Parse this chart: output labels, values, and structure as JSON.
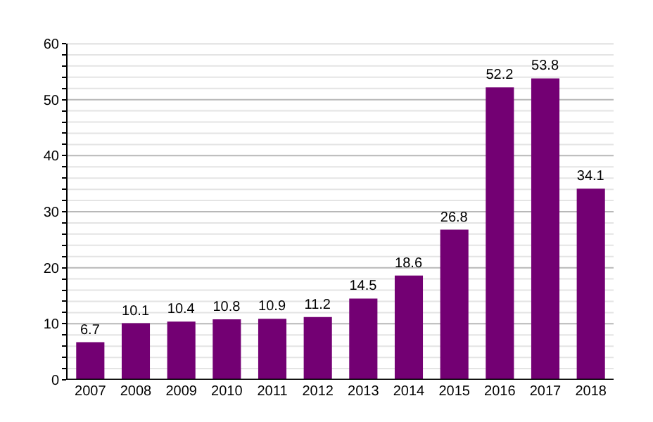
{
  "chart_data": {
    "type": "bar",
    "categories": [
      "2007",
      "2008",
      "2009",
      "2010",
      "2011",
      "2012",
      "2013",
      "2014",
      "2015",
      "2016",
      "2017",
      "2018"
    ],
    "values": [
      6.7,
      10.1,
      10.4,
      10.8,
      10.9,
      11.2,
      14.5,
      18.6,
      26.8,
      52.2,
      53.8,
      34.1
    ],
    "color": "#730073",
    "ylim": [
      0,
      60
    ],
    "yticks": [
      0,
      {
        "value": 2,
        "label": null
      },
      {
        "value": 4,
        "label": null
      },
      {
        "value": 6,
        "label": null
      },
      {
        "value": 8,
        "label": null
      },
      10,
      {
        "value": 12,
        "label": null
      },
      {
        "value": 14,
        "label": null
      },
      {
        "value": 16,
        "label": null
      },
      {
        "value": 18,
        "label": null
      },
      20,
      {
        "value": 22,
        "label": null
      },
      {
        "value": 24,
        "label": null
      },
      {
        "value": 26,
        "label": null
      },
      {
        "value": 28,
        "label": null
      },
      30,
      {
        "value": 32,
        "label": null
      },
      {
        "value": 34,
        "label": null
      },
      {
        "value": 36,
        "label": null
      },
      {
        "value": 38,
        "label": null
      },
      40,
      {
        "value": 42,
        "label": null
      },
      {
        "value": 44,
        "label": null
      },
      {
        "value": 46,
        "label": null
      },
      {
        "value": 48,
        "label": null
      },
      50,
      {
        "value": 52,
        "label": null
      },
      {
        "value": 54,
        "label": null
      },
      {
        "value": 56,
        "label": null
      },
      {
        "value": 58,
        "label": null
      },
      60
    ],
    "grid": "y",
    "data_labels": true
  }
}
